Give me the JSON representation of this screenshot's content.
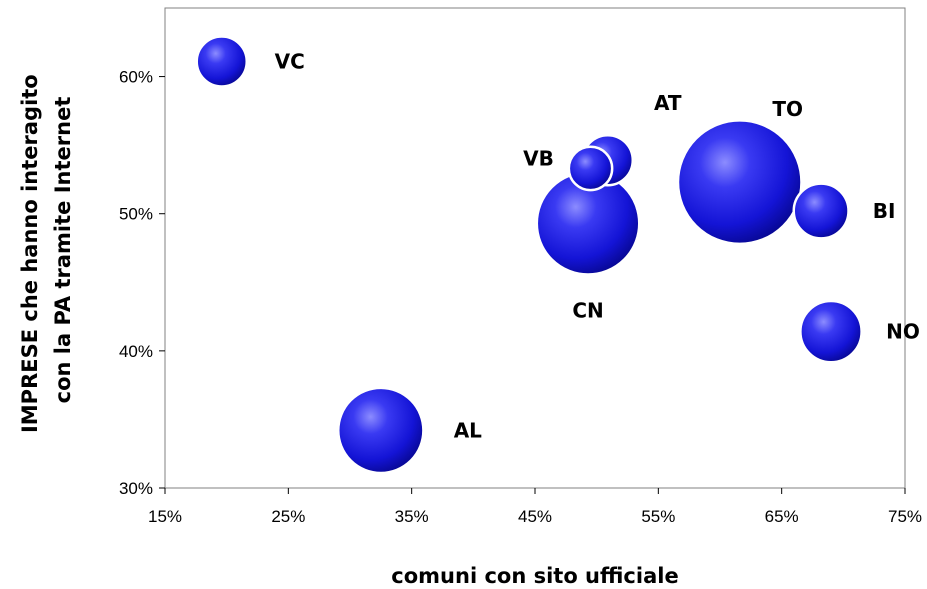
{
  "chart_data": {
    "type": "scatter",
    "xlabel": "comuni con sito ufficiale",
    "ylabel": [
      "IMPRESE che hanno interagito",
      "con la PA tramite Internet"
    ],
    "xlim": [
      0.15,
      0.75
    ],
    "ylim": [
      0.3,
      0.65
    ],
    "x_ticks": [
      0.15,
      0.25,
      0.35,
      0.45,
      0.55,
      0.65,
      0.75
    ],
    "x_tick_labels": [
      "15%",
      "25%",
      "35%",
      "45%",
      "55%",
      "65%",
      "75%"
    ],
    "y_ticks": [
      0.3,
      0.4,
      0.5,
      0.6
    ],
    "y_tick_labels": [
      "30%",
      "40%",
      "50%",
      "60%"
    ],
    "grid": false,
    "bubble_color": "#1a1adc",
    "points": [
      {
        "label": "VC",
        "x": 0.196,
        "y": 0.611,
        "size": 1.0
      },
      {
        "label": "AT",
        "x": 0.509,
        "y": 0.539,
        "size": 1.0
      },
      {
        "label": "VB",
        "x": 0.495,
        "y": 0.533,
        "size": 0.75
      },
      {
        "label": "CN",
        "x": 0.493,
        "y": 0.493,
        "size": 4.2
      },
      {
        "label": "TO",
        "x": 0.616,
        "y": 0.523,
        "size": 6.1
      },
      {
        "label": "BI",
        "x": 0.682,
        "y": 0.502,
        "size": 1.2
      },
      {
        "label": "NO",
        "x": 0.69,
        "y": 0.414,
        "size": 1.5
      },
      {
        "label": "AL",
        "x": 0.325,
        "y": 0.342,
        "size": 2.9
      }
    ]
  }
}
